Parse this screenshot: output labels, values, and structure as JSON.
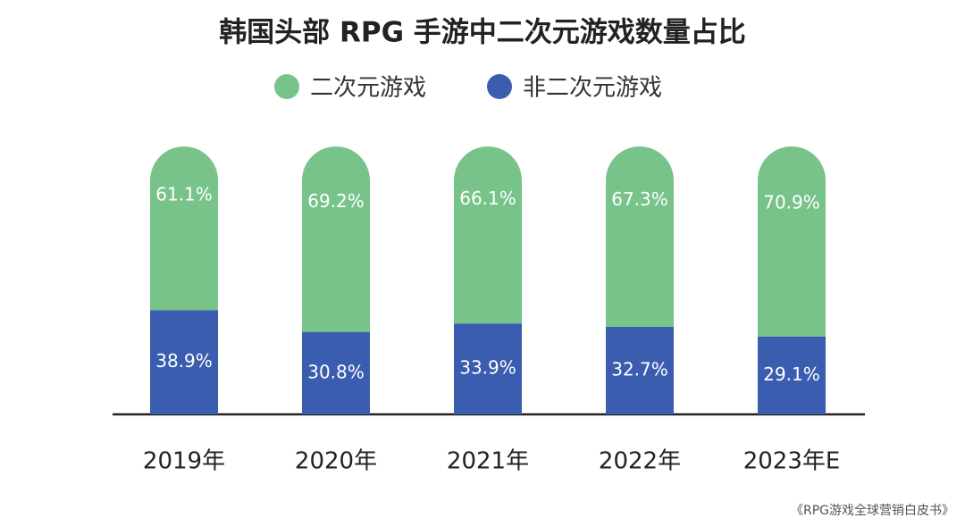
{
  "chart_data": {
    "type": "stacked_bar",
    "title": "韩国头部 RPG 手游中二次元游戏数量占比",
    "categories": [
      "2019年",
      "2020年",
      "2021年",
      "2022年",
      "2023年E"
    ],
    "series": [
      {
        "name": "二次元游戏",
        "color": "#78c38a",
        "values": [
          61.1,
          69.2,
          66.1,
          67.3,
          70.9
        ],
        "value_labels": [
          "61.1%",
          "69.2%",
          "66.1%",
          "67.3%",
          "70.9%"
        ]
      },
      {
        "name": "非二次元游戏",
        "color": "#3a5db0",
        "values": [
          38.9,
          30.8,
          33.9,
          32.7,
          29.1
        ],
        "value_labels": [
          "38.9%",
          "30.8%",
          "33.9%",
          "32.7%",
          "29.1%"
        ]
      }
    ],
    "source": "《RPG游戏全球营销白皮书》"
  }
}
